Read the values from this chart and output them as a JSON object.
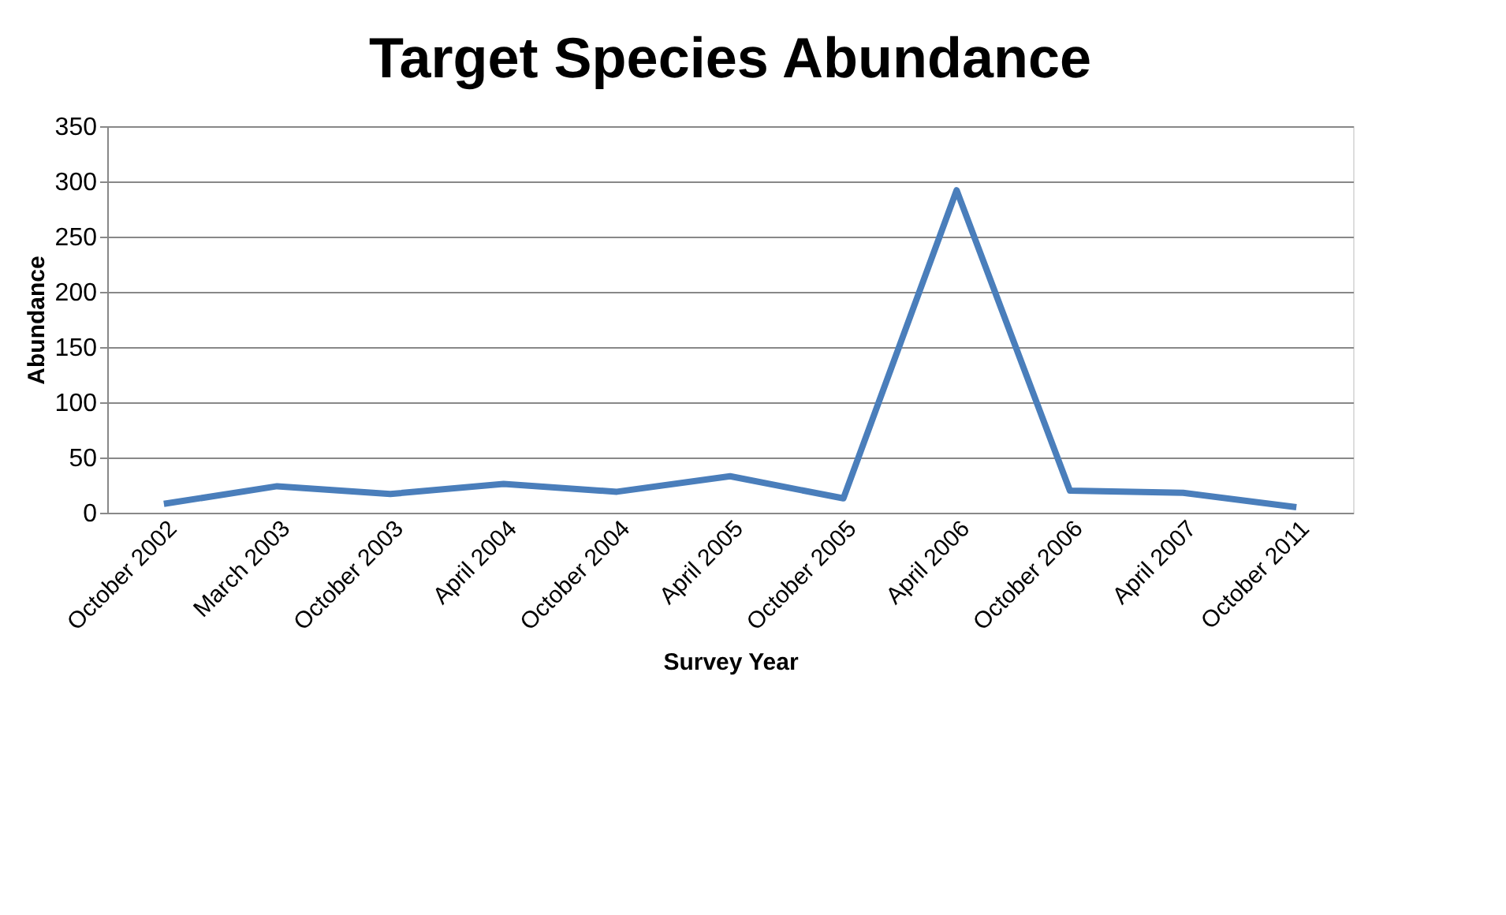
{
  "chart_data": {
    "type": "line",
    "title": "Target Species Abundance",
    "xlabel": "Survey Year",
    "ylabel": "Abundance",
    "categories": [
      "October 2002",
      "March 2003",
      "October 2003",
      "April 2004",
      "October 2004",
      "April 2005",
      "October 2005",
      "April 2006",
      "October 2006",
      "April 2007",
      "October 2011"
    ],
    "series": [
      {
        "color": "#4a7ebb",
        "values": [
          8,
          24,
          17,
          26,
          19,
          33,
          13,
          292,
          20,
          18,
          5
        ]
      }
    ],
    "ylim": [
      0,
      350
    ],
    "yticks": [
      0,
      50,
      100,
      150,
      200,
      250,
      300,
      350
    ],
    "grid": "y",
    "marker": "none",
    "line_style": "solid"
  }
}
